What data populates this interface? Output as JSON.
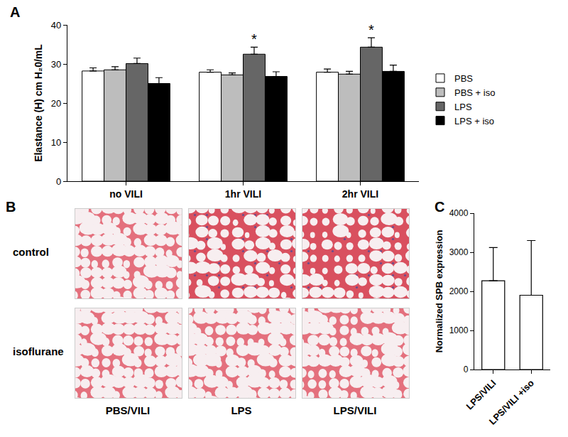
{
  "chart_data": [
    {
      "panel": "A",
      "type": "bar",
      "categories": [
        "no VILI",
        "1hr VILI",
        "2hr VILI"
      ],
      "series": [
        {
          "name": "PBS",
          "color": "#ffffff",
          "values": [
            28.2,
            27.9,
            27.9
          ],
          "error": [
            0.8,
            0.6,
            0.8
          ]
        },
        {
          "name": "PBS + iso",
          "color": "#bdbdbd",
          "values": [
            28.5,
            27.2,
            27.4
          ],
          "error": [
            0.8,
            0.5,
            0.7
          ]
        },
        {
          "name": "LPS",
          "color": "#666666",
          "values": [
            30.1,
            32.5,
            34.3
          ],
          "error": [
            1.4,
            1.8,
            2.4
          ]
        },
        {
          "name": "LPS + iso",
          "color": "#000000",
          "values": [
            25.0,
            26.8,
            28.1
          ],
          "error": [
            1.5,
            1.2,
            1.6
          ]
        }
      ],
      "ylabel": "Elastance (H) cm H₂0/mL",
      "ylim": [
        0,
        40
      ],
      "yticks": [
        0,
        10,
        20,
        30,
        40
      ],
      "grid": false,
      "legend": "right",
      "annotations": [
        {
          "text": "*",
          "category": "1hr VILI",
          "series": "LPS"
        },
        {
          "text": "*",
          "category": "2hr VILI",
          "series": "LPS"
        }
      ]
    },
    {
      "panel": "C",
      "type": "bar",
      "categories": [
        "LPS/VILI",
        "LPS/VILI +iso"
      ],
      "values": [
        2270,
        1900
      ],
      "error": [
        850,
        1400
      ],
      "color": "#ffffff",
      "ylabel": "Normalized SPB expression",
      "ylim": [
        0,
        4000
      ],
      "yticks": [
        0,
        1000,
        2000,
        3000,
        4000
      ],
      "grid": false
    }
  ],
  "image_panel": {
    "panel": "B",
    "rows": [
      "control",
      "isoflurane"
    ],
    "columns": [
      "PBS/VILI",
      "LPS",
      "LPS/VILI"
    ]
  }
}
